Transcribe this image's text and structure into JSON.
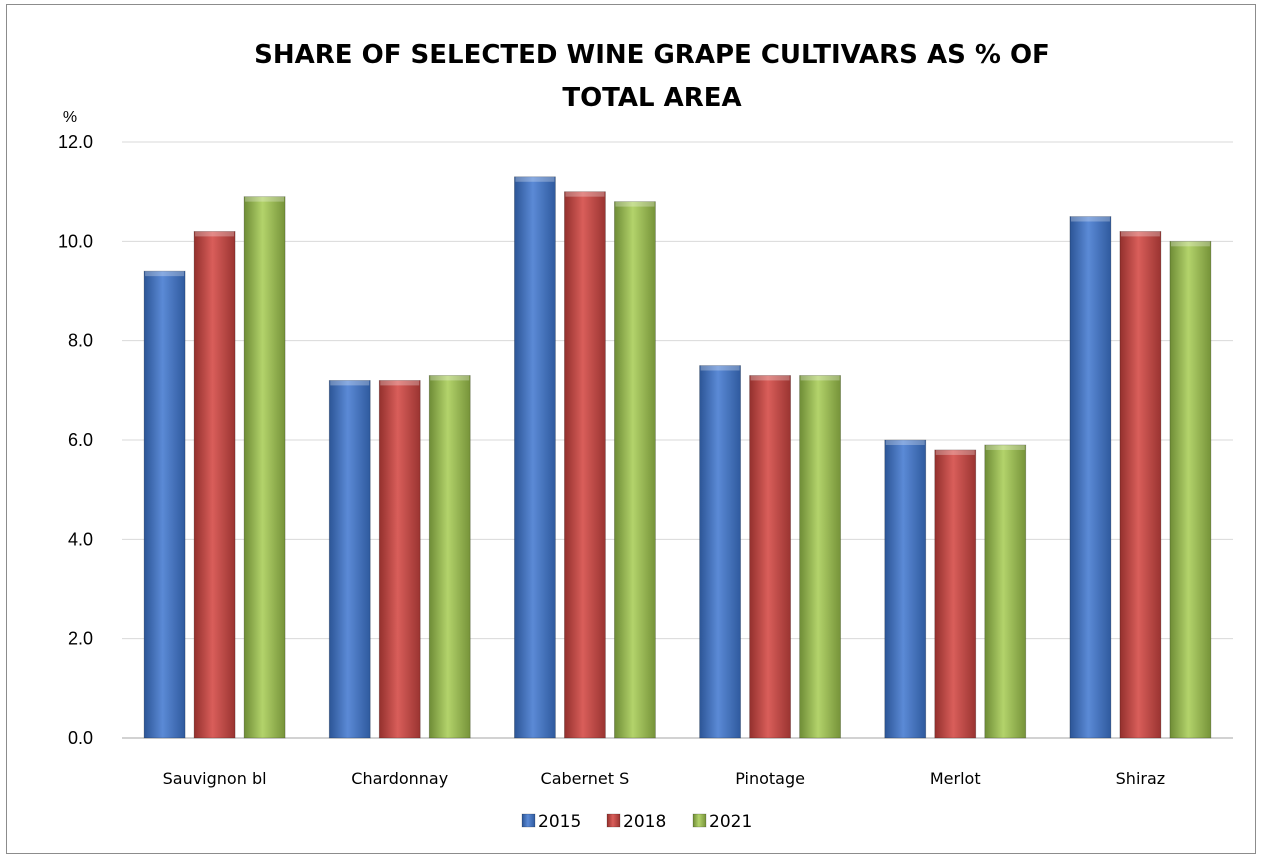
{
  "chart_data": {
    "type": "bar",
    "title": "SHARE OF SELECTED  WINE GRAPE CULTIVARS AS % OF TOTAL AREA",
    "title_lines": [
      "SHARE OF SELECTED  WINE GRAPE CULTIVARS AS % OF",
      "TOTAL AREA"
    ],
    "ylabel": "%",
    "xlabel": "",
    "ylim": [
      0,
      12
    ],
    "yticks": [
      "0.0",
      "2.0",
      "4.0",
      "6.0",
      "8.0",
      "10.0",
      "12.0"
    ],
    "grid": true,
    "legend_position": "bottom",
    "categories": [
      "Sauvignon bl",
      "Chardonnay",
      "Cabernet S",
      "Pinotage",
      "Merlot",
      "Shiraz"
    ],
    "series": [
      {
        "name": "2015",
        "color": "#4472C4",
        "values": [
          9.4,
          7.2,
          11.3,
          7.5,
          6.0,
          10.5
        ]
      },
      {
        "name": "2018",
        "color": "#C0504D",
        "values": [
          10.2,
          7.2,
          11.0,
          7.3,
          5.8,
          10.2
        ]
      },
      {
        "name": "2021",
        "color": "#9BBB59",
        "values": [
          10.9,
          7.3,
          10.8,
          7.3,
          5.9,
          10.0
        ]
      }
    ]
  }
}
